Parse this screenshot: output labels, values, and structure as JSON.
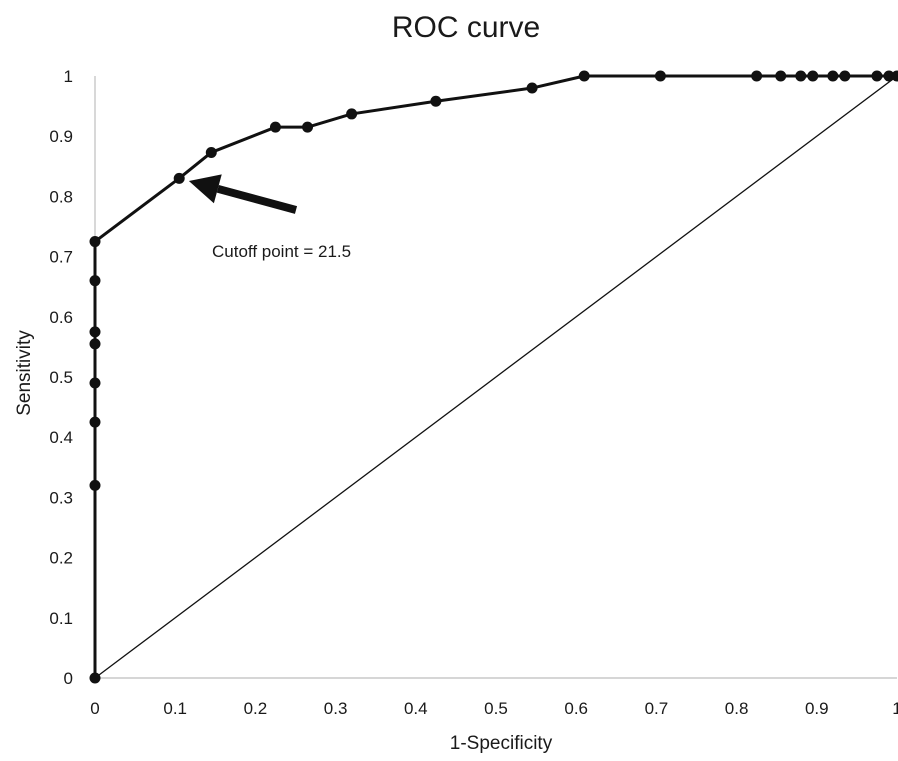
{
  "chart_data": {
    "type": "line",
    "title": "ROC curve",
    "xlabel": "1-Specificity",
    "ylabel": "Sensitivity",
    "xlim": [
      0,
      1
    ],
    "ylim": [
      0,
      1
    ],
    "x_ticks": [
      "0",
      "0.1",
      "0.2",
      "0.3",
      "0.4",
      "0.5",
      "0.6",
      "0.7",
      "0.8",
      "0.9",
      "1"
    ],
    "y_ticks": [
      "0",
      "0.1",
      "0.2",
      "0.3",
      "0.4",
      "0.5",
      "0.6",
      "0.7",
      "0.8",
      "0.9",
      "1"
    ],
    "grid": false,
    "legend": "none",
    "series": [
      {
        "marker": "circle",
        "color": "#111111",
        "x": [
          0,
          0,
          0,
          0,
          0,
          0,
          0,
          0,
          0.105,
          0.145,
          0.225,
          0.265,
          0.32,
          0.425,
          0.545,
          0.61,
          0.705,
          0.825,
          0.855,
          0.88,
          0.895,
          0.92,
          0.935,
          0.975,
          0.99,
          1.0
        ],
        "y": [
          0,
          0.32,
          0.425,
          0.49,
          0.555,
          0.575,
          0.66,
          0.725,
          0.83,
          0.873,
          0.915,
          0.915,
          0.937,
          0.958,
          0.98,
          1.0,
          1.0,
          1.0,
          1.0,
          1.0,
          1.0,
          1.0,
          1.0,
          1.0,
          1.0,
          1.0
        ]
      },
      {
        "style": "reference-line",
        "color": "#111111",
        "x": [
          0,
          1
        ],
        "y": [
          0,
          1
        ]
      }
    ],
    "annotation": {
      "text": "Cutoff point = 21.5",
      "target_x": 0.105,
      "target_y": 0.83
    }
  }
}
